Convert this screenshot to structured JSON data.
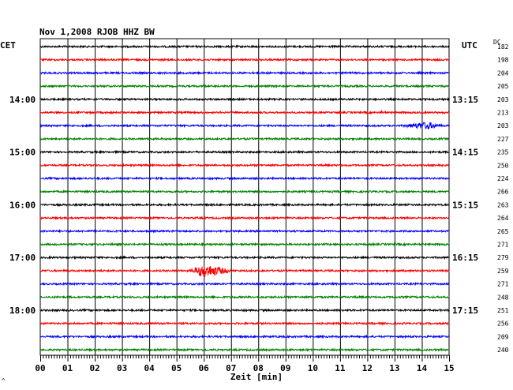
{
  "header": {
    "title": "Nov 1,2008  RJOB HHZ BW"
  },
  "left_axis_label": "CET",
  "right_axis_label": "UTC",
  "dc_label": "DC",
  "corner_mark": "^",
  "colors": {
    "cycle": [
      "#000000",
      "#ff0000",
      "#0000ff",
      "#008000"
    ],
    "grid": "#000000"
  },
  "chart_data": {
    "type": "line",
    "xlabel": "Zeit [min]",
    "xlim": [
      0,
      15
    ],
    "x_ticks": [
      "00",
      "01",
      "02",
      "03",
      "04",
      "05",
      "06",
      "07",
      "08",
      "09",
      "10",
      "11",
      "12",
      "13",
      "14",
      "15"
    ],
    "trace_count": 24,
    "cet_labels": [
      {
        "trace": 4,
        "text": "14:00"
      },
      {
        "trace": 8,
        "text": "15:00"
      },
      {
        "trace": 12,
        "text": "16:00"
      },
      {
        "trace": 16,
        "text": "17:00"
      },
      {
        "trace": 20,
        "text": "18:00"
      }
    ],
    "utc_labels": [
      {
        "trace": 4,
        "text": "13:15"
      },
      {
        "trace": 8,
        "text": "14:15"
      },
      {
        "trace": 12,
        "text": "15:15"
      },
      {
        "trace": 16,
        "text": "16:15"
      },
      {
        "trace": 20,
        "text": "17:15"
      }
    ],
    "dc_values": [
      "182",
      "198",
      "204",
      "205",
      "203",
      "213",
      "203",
      "227",
      "235",
      "250",
      "224",
      "266",
      "263",
      "264",
      "265",
      "271",
      "279",
      "259",
      "271",
      "248",
      "251",
      "256",
      "209",
      "240"
    ],
    "events": [
      {
        "trace": 6,
        "start_min": 13.0,
        "end_min": 14.9,
        "peak_min": 14.2,
        "amplitude": 5
      },
      {
        "trace": 17,
        "start_min": 5.4,
        "end_min": 7.2,
        "peak_min": 6.0,
        "amplitude": 9
      },
      {
        "trace": 5,
        "start_min": 12.3,
        "end_min": 12.9,
        "peak_min": 12.5,
        "amplitude": 2
      }
    ]
  }
}
